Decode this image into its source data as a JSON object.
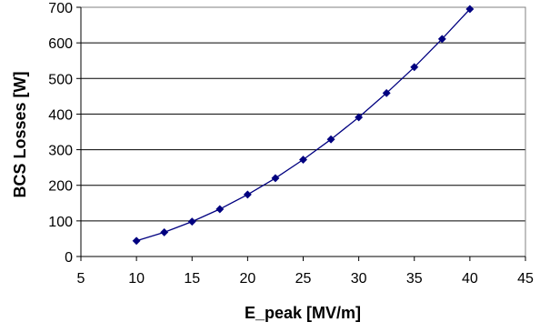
{
  "chart_data": {
    "type": "line",
    "title": "",
    "xlabel": "E_peak [MV/m]",
    "ylabel": "BCS Losses [W]",
    "xlim": [
      5,
      45
    ],
    "ylim": [
      0,
      700
    ],
    "x_ticks": [
      "5",
      "10",
      "15",
      "20",
      "25",
      "30",
      "35",
      "40",
      "45"
    ],
    "y_ticks": [
      "0",
      "100",
      "200",
      "300",
      "400",
      "500",
      "600",
      "700"
    ],
    "grid": "horizontal",
    "legend": "none",
    "series": [
      {
        "x": [
          10,
          12.5,
          15,
          17.5,
          20,
          22.5,
          25,
          27.5,
          30,
          32.5,
          35,
          37.5,
          40
        ],
        "y": [
          44,
          68,
          98,
          133,
          174,
          220,
          272,
          329,
          391,
          459,
          532,
          611,
          695
        ]
      }
    ],
    "colors": {
      "series": "#000080",
      "grid": "#000000",
      "plot_border": "#808080"
    }
  }
}
